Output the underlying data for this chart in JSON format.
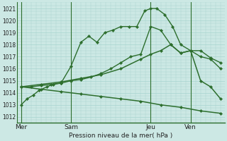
{
  "bg_color": "#cce8e4",
  "grid_color": "#a8d4cf",
  "line_color": "#2d6e2d",
  "xlabel": "Pression niveau de la mer( hPa )",
  "ylim": [
    1011.5,
    1021.5
  ],
  "yticks": [
    1012,
    1013,
    1014,
    1015,
    1016,
    1017,
    1018,
    1019,
    1020,
    1021
  ],
  "xlim": [
    -0.2,
    10.2
  ],
  "vlines": [
    0.0,
    2.5,
    6.5,
    8.5
  ],
  "xtick_positions": [
    0.0,
    2.5,
    6.5,
    8.5
  ],
  "xtick_labels": [
    "Mer",
    "Sam",
    "Jeu",
    "Ven"
  ],
  "series": [
    {
      "x": [
        0.0,
        0.3,
        0.6,
        0.9,
        1.3,
        1.6,
        2.0,
        2.5,
        3.0,
        3.4,
        3.8,
        4.2,
        4.6,
        5.0,
        5.4,
        5.8,
        6.2,
        6.5,
        6.8,
        7.2,
        7.6,
        8.0,
        8.5,
        9.0,
        9.5,
        10.0
      ],
      "y": [
        1013.0,
        1013.5,
        1013.8,
        1014.2,
        1014.5,
        1014.7,
        1014.8,
        1016.2,
        1018.2,
        1018.7,
        1018.2,
        1019.0,
        1019.2,
        1019.5,
        1019.5,
        1019.5,
        1020.8,
        1021.0,
        1021.0,
        1020.5,
        1019.5,
        1018.0,
        1017.5,
        1017.0,
        1016.8,
        1016.0
      ]
    },
    {
      "x": [
        0.0,
        0.5,
        1.0,
        1.5,
        2.0,
        2.5,
        3.0,
        3.5,
        4.0,
        4.5,
        5.0,
        5.5,
        6.0,
        6.5,
        7.0,
        7.5,
        8.0,
        8.5,
        9.0,
        9.5,
        10.0
      ],
      "y": [
        1014.5,
        1014.5,
        1014.6,
        1014.7,
        1014.8,
        1015.0,
        1015.1,
        1015.3,
        1015.6,
        1016.0,
        1016.5,
        1017.0,
        1017.2,
        1019.5,
        1019.2,
        1018.0,
        1017.3,
        1017.5,
        1017.5,
        1016.9,
        1016.5
      ]
    },
    {
      "x": [
        0.0,
        1.0,
        2.0,
        3.0,
        4.0,
        5.0,
        6.0,
        6.5,
        7.0,
        7.5,
        8.0,
        8.5,
        9.0,
        9.5,
        10.0
      ],
      "y": [
        1014.5,
        1014.7,
        1014.9,
        1015.2,
        1015.5,
        1016.0,
        1016.8,
        1017.2,
        1017.5,
        1018.0,
        1017.3,
        1017.5,
        1015.0,
        1014.5,
        1013.5
      ]
    },
    {
      "x": [
        0.0,
        1.0,
        2.0,
        3.0,
        4.0,
        5.0,
        6.0,
        7.0,
        8.0,
        9.0,
        10.0
      ],
      "y": [
        1014.5,
        1014.3,
        1014.1,
        1013.9,
        1013.7,
        1013.5,
        1013.3,
        1013.0,
        1012.8,
        1012.5,
        1012.3
      ]
    }
  ]
}
